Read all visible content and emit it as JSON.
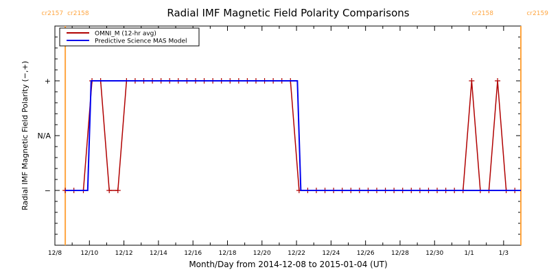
{
  "chart_data": {
    "type": "line",
    "title": "Radial IMF Magnetic Field Polarity Comparisons",
    "xlabel": "Month/Day from 2014-12-08 to 2015-01-04 (UT)",
    "ylabel": "Radial IMF Magnetic Field Polarity (−,+)",
    "x_unit": "days since 2014-12-08 00:00 UT",
    "xlim": [
      0,
      27
    ],
    "ylim": [
      -2,
      2
    ],
    "x_ticks": [
      {
        "value": 0,
        "label": "12/8"
      },
      {
        "value": 2,
        "label": "12/10"
      },
      {
        "value": 4,
        "label": "12/12"
      },
      {
        "value": 6,
        "label": "12/14"
      },
      {
        "value": 8,
        "label": "12/16"
      },
      {
        "value": 10,
        "label": "12/18"
      },
      {
        "value": 12,
        "label": "12/20"
      },
      {
        "value": 14,
        "label": "12/22"
      },
      {
        "value": 16,
        "label": "12/24"
      },
      {
        "value": 18,
        "label": "12/26"
      },
      {
        "value": 20,
        "label": "12/28"
      },
      {
        "value": 22,
        "label": "12/30"
      },
      {
        "value": 24,
        "label": "1/1"
      },
      {
        "value": 26,
        "label": "1/3"
      }
    ],
    "y_ticks": [
      {
        "value": 1,
        "label": "+"
      },
      {
        "value": 0,
        "label": "N/A"
      },
      {
        "value": -1,
        "label": "−"
      }
    ],
    "legend_position": "top-left",
    "carrington_markers": [
      {
        "day": 0.6,
        "label_left": "cr2157",
        "label_right": "cr2158",
        "color": "#ffa53f",
        "side": "left"
      },
      {
        "day": 27.0,
        "label_left": "cr2158",
        "label_right": "cr2159",
        "color": "#ffa53f",
        "side": "right"
      }
    ],
    "series": [
      {
        "name": "OMNI_M (12-hr avg)",
        "color": "#b00000",
        "markers": true,
        "x": [
          0.6,
          1.1,
          1.65,
          2.15,
          2.65,
          3.15,
          3.65,
          4.15,
          4.65,
          5.15,
          5.65,
          6.15,
          6.65,
          7.15,
          7.65,
          8.15,
          8.65,
          9.15,
          9.65,
          10.15,
          10.65,
          11.15,
          11.65,
          12.15,
          12.65,
          13.15,
          13.65,
          14.15,
          14.65,
          15.15,
          15.65,
          16.15,
          16.65,
          17.15,
          17.65,
          18.15,
          18.65,
          19.15,
          19.65,
          20.15,
          20.65,
          21.15,
          21.65,
          22.15,
          22.65,
          23.15,
          23.65,
          24.15,
          24.65,
          25.15,
          25.65,
          26.15,
          26.65
        ],
        "values": [
          -1,
          -1,
          -1,
          1,
          1,
          -1,
          -1,
          1,
          1,
          1,
          1,
          1,
          1,
          1,
          1,
          1,
          1,
          1,
          1,
          1,
          1,
          1,
          1,
          1,
          1,
          1,
          1,
          -1,
          -1,
          -1,
          -1,
          -1,
          -1,
          -1,
          -1,
          -1,
          -1,
          -1,
          -1,
          -1,
          -1,
          -1,
          -1,
          -1,
          -1,
          -1,
          -1,
          1,
          -1,
          -1,
          1,
          -1,
          -1
        ]
      },
      {
        "name": "Predictive Science MAS Model",
        "color": "#0000ee",
        "markers": false,
        "x": [
          0.6,
          1.9,
          2.1,
          14.05,
          14.25,
          27.0
        ],
        "values": [
          -1,
          -1,
          1,
          1,
          -1,
          -1
        ]
      }
    ]
  }
}
